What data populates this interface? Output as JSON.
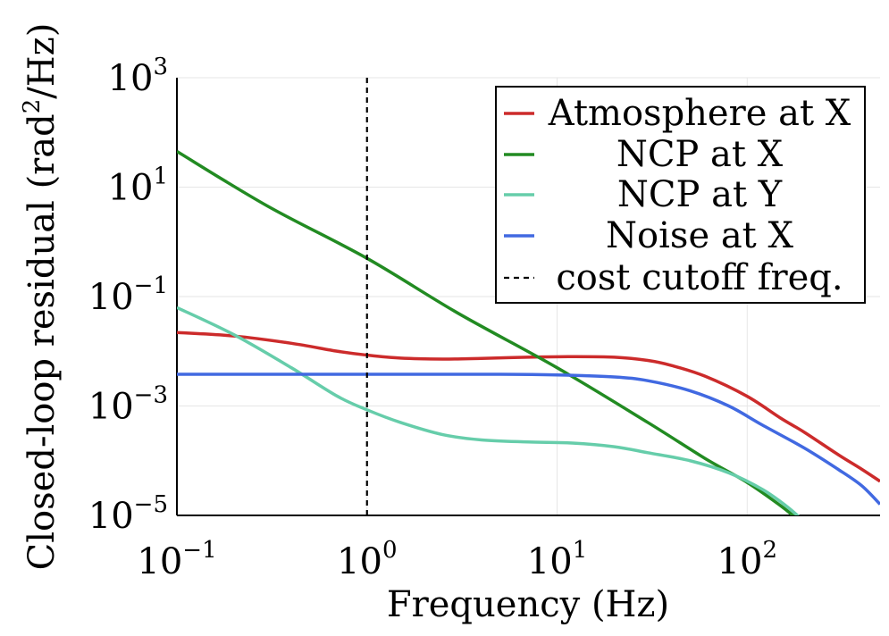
{
  "chart_data": {
    "type": "line",
    "title": "",
    "xlabel": "Frequency (Hz)",
    "ylabel": "Closed-loop residual (rad",
    "ylabel_sup": "2",
    "ylabel_suffix": "/Hz)",
    "xscale": "log",
    "yscale": "log",
    "xlim": [
      0.1,
      500
    ],
    "ylim": [
      1e-05,
      1000
    ],
    "grid": true,
    "legend_position": "top-right",
    "x_ticks": [
      {
        "base": "10",
        "exp": "−1",
        "value": 0.1
      },
      {
        "base": "10",
        "exp": "0",
        "value": 1
      },
      {
        "base": "10",
        "exp": "1",
        "value": 10
      },
      {
        "base": "10",
        "exp": "2",
        "value": 100
      }
    ],
    "y_ticks": [
      {
        "base": "10",
        "exp": "3",
        "value": 1000
      },
      {
        "base": "10",
        "exp": "1",
        "value": 10
      },
      {
        "base": "10",
        "exp": "−1",
        "value": 0.1
      },
      {
        "base": "10",
        "exp": "−3",
        "value": 0.001
      },
      {
        "base": "10",
        "exp": "−5",
        "value": 1e-05
      }
    ],
    "series": [
      {
        "name": "Atmosphere at X",
        "color": "#cc2b2b",
        "dashed": false,
        "points": [
          [
            0.1,
            0.022
          ],
          [
            0.2,
            0.019
          ],
          [
            0.4,
            0.014
          ],
          [
            0.7,
            0.01
          ],
          [
            1,
            0.0085
          ],
          [
            1.5,
            0.0075
          ],
          [
            2.5,
            0.0072
          ],
          [
            4,
            0.0074
          ],
          [
            7,
            0.0078
          ],
          [
            12,
            0.008
          ],
          [
            20,
            0.0078
          ],
          [
            30,
            0.0068
          ],
          [
            40,
            0.0055
          ],
          [
            60,
            0.0035
          ],
          [
            100,
            0.0015
          ],
          [
            150,
            0.0006
          ],
          [
            200,
            0.00033
          ],
          [
            300,
            0.00013
          ],
          [
            400,
            7e-05
          ],
          [
            500,
            4.2e-05
          ]
        ]
      },
      {
        "name": "NCP at X",
        "color": "#228b22",
        "dashed": false,
        "points": [
          [
            0.1,
            45
          ],
          [
            0.3,
            4.5
          ],
          [
            1,
            0.5
          ],
          [
            3,
            0.05
          ],
          [
            10,
            0.005
          ],
          [
            30,
            0.0005
          ],
          [
            60,
            0.00011
          ],
          [
            100,
            4e-05
          ],
          [
            150,
            1.5e-05
          ],
          [
            180,
            9e-06
          ]
        ]
      },
      {
        "name": "NCP at Y",
        "color": "#66cdaa",
        "dashed": false,
        "points": [
          [
            0.1,
            0.063
          ],
          [
            0.2,
            0.02
          ],
          [
            0.4,
            0.005
          ],
          [
            0.7,
            0.0015
          ],
          [
            1,
            0.00085
          ],
          [
            1.5,
            0.0005
          ],
          [
            2.5,
            0.0003
          ],
          [
            4,
            0.00024
          ],
          [
            7,
            0.00022
          ],
          [
            12,
            0.00021
          ],
          [
            20,
            0.00018
          ],
          [
            30,
            0.00014
          ],
          [
            50,
            0.0001
          ],
          [
            80,
            6e-05
          ],
          [
            120,
            3e-05
          ],
          [
            160,
            1.5e-05
          ],
          [
            190,
            9e-06
          ]
        ]
      },
      {
        "name": "Noise at X",
        "color": "#4169e1",
        "dashed": false,
        "points": [
          [
            0.1,
            0.0038
          ],
          [
            1,
            0.0038
          ],
          [
            5,
            0.0038
          ],
          [
            10,
            0.0037
          ],
          [
            20,
            0.0034
          ],
          [
            30,
            0.0029
          ],
          [
            50,
            0.0019
          ],
          [
            80,
            0.001
          ],
          [
            120,
            0.00045
          ],
          [
            200,
            0.00017
          ],
          [
            300,
            7e-05
          ],
          [
            400,
            3.5e-05
          ],
          [
            500,
            1.6e-05
          ]
        ]
      },
      {
        "name": "cost cutoff freq.",
        "color": "#000000",
        "dashed": true,
        "points": [
          [
            1,
            1e-05
          ],
          [
            1,
            1000
          ]
        ]
      }
    ]
  }
}
